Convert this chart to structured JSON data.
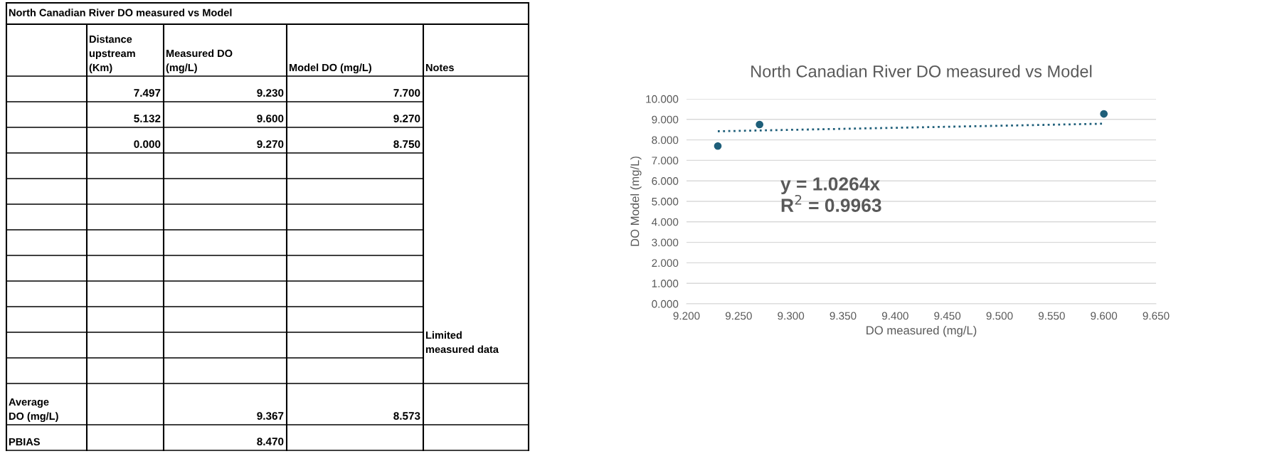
{
  "chart_data": [
    {
      "type": "other",
      "title": "North Canadian River DO measured vs Model",
      "annotations": [
        "Distance\nupstream\n(Km)",
        "Measured DO\n(mg/L)",
        "Model DO (mg/L)",
        "Notes",
        "7.497",
        "9.230",
        "7.700",
        "5.132",
        "9.600",
        "9.270",
        "0.000",
        "9.270",
        "8.750",
        "Limited\nmeasured data",
        "Average\nDO (mg/L)",
        "9.367",
        "8.573",
        "PBIAS",
        "8.470"
      ]
    },
    {
      "type": "scatter",
      "title": "North Canadian River DO measured vs Model",
      "xlabel": "DO measured (mg/L)",
      "ylabel": "DO Model (mg/L)",
      "x": [
        9.23,
        9.27,
        9.6
      ],
      "grid": "y",
      "series": [
        {
          "type": "scatter",
          "marker": "circle",
          "color": "#1f5f7a",
          "values": [
            7.7,
            8.75,
            9.27
          ]
        },
        {
          "type": "line",
          "marker": "none",
          "color": "#1f5f7a",
          "line_style": "dotted",
          "x": [
            9.23,
            9.6
          ],
          "values": [
            8.42,
            8.79
          ]
        }
      ],
      "xlim": [
        9.2,
        9.65
      ],
      "ylim": [
        0,
        10
      ],
      "xticks": [
        {
          "value": 9.2,
          "label": "9.200"
        },
        {
          "value": 9.25,
          "label": "9.250"
        },
        {
          "value": 9.3,
          "label": "9.300"
        },
        {
          "value": 9.35,
          "label": "9.350"
        },
        {
          "value": 9.4,
          "label": "9.400"
        },
        {
          "value": 9.45,
          "label": "9.450"
        },
        {
          "value": 9.5,
          "label": "9.500"
        },
        {
          "value": 9.55,
          "label": "9.550"
        },
        {
          "value": 9.6,
          "label": "9.600"
        },
        {
          "value": 9.65,
          "label": "9.650"
        }
      ],
      "yticks": [
        {
          "value": 0,
          "label": "0.000"
        },
        {
          "value": 1,
          "label": "1.000"
        },
        {
          "value": 2,
          "label": "2.000"
        },
        {
          "value": 3,
          "label": "3.000"
        },
        {
          "value": 4,
          "label": "4.000"
        },
        {
          "value": 5,
          "label": "5.000"
        },
        {
          "value": 6,
          "label": "6.000"
        },
        {
          "value": 7,
          "label": "7.000"
        },
        {
          "value": 8,
          "label": "8.000"
        },
        {
          "value": 9,
          "label": "9.000"
        },
        {
          "value": 10,
          "label": "10.000"
        }
      ],
      "annotations": [
        "y = 1.0264x\nR$^{2}$ = 0.9963"
      ]
    }
  ]
}
